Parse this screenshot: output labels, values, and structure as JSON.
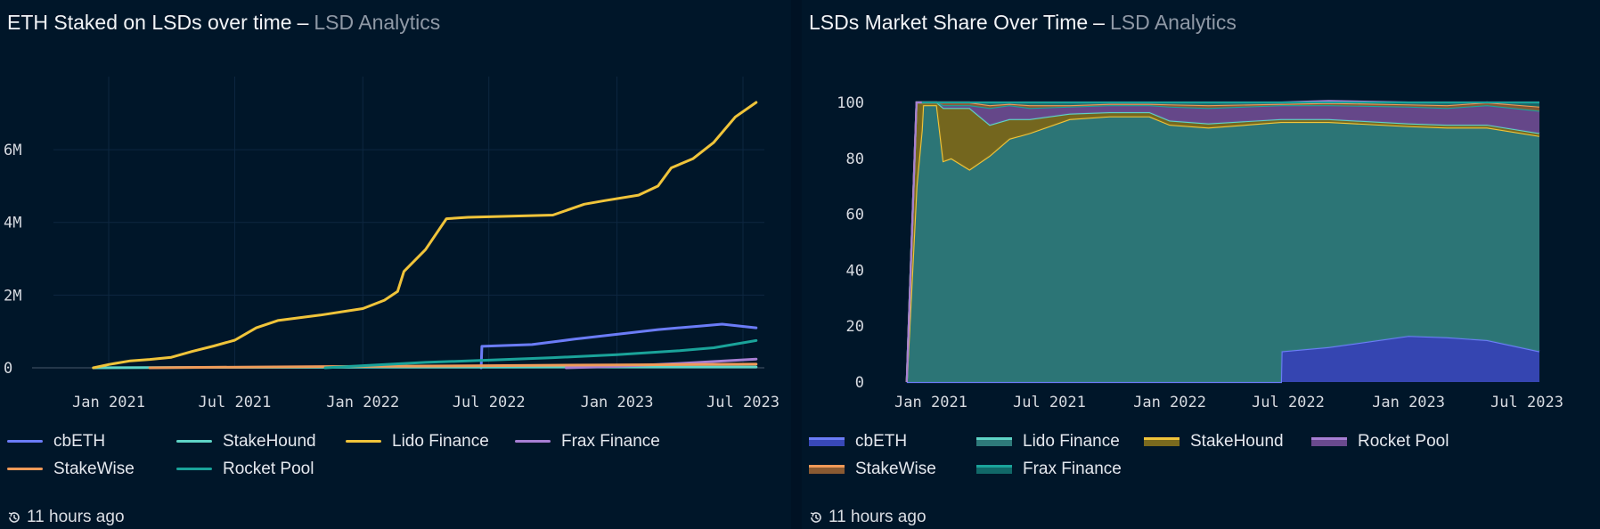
{
  "panels": [
    {
      "title": "ETH Staked on LSDs over time",
      "separator": "–",
      "subtitle": "LSD Analytics",
      "updated": "11 hours ago"
    },
    {
      "title": "LSDs Market Share Over Time",
      "separator": "–",
      "subtitle": "LSD Analytics",
      "updated": "11 hours ago"
    }
  ],
  "colors": {
    "cbETH": "#6b7cf7",
    "StakeHound": "#5ed4c6",
    "Lido Finance": "#f0c43a",
    "Frax Finance": "#a77fd4",
    "StakeWise": "#f09a58",
    "Rocket Pool": "#1aa39a",
    "area_cbETH": "#3848b8",
    "area_Lido": "#2e7a7a",
    "area_StakeHound": "#7a6a1e",
    "area_Rocket": "#6a4a8e",
    "area_StakeWise": "#8a5a32",
    "area_Frax": "#116868"
  },
  "chart_data": [
    {
      "type": "line",
      "title": "ETH Staked on LSDs over time",
      "x_ticks": [
        "Jan 2021",
        "Jul 2021",
        "Jan 2022",
        "Jul 2022",
        "Jan 2023",
        "Jul 2023"
      ],
      "y_ticks": [
        "0",
        "2M",
        "4M",
        "6M"
      ],
      "ylim": [
        0,
        7300000
      ],
      "legend": "bottom",
      "series": [
        {
          "name": "cbETH",
          "points": [
            [
              "2022-06-20",
              0
            ],
            [
              "2022-06-21",
              590000
            ],
            [
              "2022-09-01",
              640000
            ],
            [
              "2022-11-01",
              790000
            ],
            [
              "2023-01-01",
              920000
            ],
            [
              "2023-03-01",
              1050000
            ],
            [
              "2023-05-01",
              1150000
            ],
            [
              "2023-06-01",
              1200000
            ],
            [
              "2023-07-20",
              1100000
            ]
          ]
        },
        {
          "name": "StakeHound",
          "points": [
            [
              "2020-12-10",
              0
            ],
            [
              "2021-06-01",
              12000
            ],
            [
              "2022-01-01",
              18000
            ],
            [
              "2022-07-01",
              20000
            ],
            [
              "2023-07-20",
              22000
            ]
          ]
        },
        {
          "name": "Lido Finance",
          "points": [
            [
              "2020-12-10",
              0
            ],
            [
              "2021-01-01",
              90000
            ],
            [
              "2021-02-01",
              190000
            ],
            [
              "2021-03-01",
              230000
            ],
            [
              "2021-04-01",
              290000
            ],
            [
              "2021-05-01",
              450000
            ],
            [
              "2021-06-01",
              600000
            ],
            [
              "2021-07-01",
              760000
            ],
            [
              "2021-08-01",
              1100000
            ],
            [
              "2021-09-01",
              1300000
            ],
            [
              "2021-11-01",
              1450000
            ],
            [
              "2022-01-01",
              1630000
            ],
            [
              "2022-02-01",
              1860000
            ],
            [
              "2022-02-20",
              2100000
            ],
            [
              "2022-03-01",
              2650000
            ],
            [
              "2022-04-01",
              3250000
            ],
            [
              "2022-05-01",
              4100000
            ],
            [
              "2022-06-01",
              4140000
            ],
            [
              "2022-08-01",
              4170000
            ],
            [
              "2022-10-01",
              4200000
            ],
            [
              "2022-11-15",
              4500000
            ],
            [
              "2022-12-15",
              4600000
            ],
            [
              "2023-02-01",
              4750000
            ],
            [
              "2023-03-01",
              5000000
            ],
            [
              "2023-03-20",
              5500000
            ],
            [
              "2023-04-20",
              5750000
            ],
            [
              "2023-05-20",
              6200000
            ],
            [
              "2023-06-20",
              6900000
            ],
            [
              "2023-07-20",
              7300000
            ]
          ]
        },
        {
          "name": "Frax Finance",
          "points": [
            [
              "2022-10-20",
              0
            ],
            [
              "2023-01-01",
              40000
            ],
            [
              "2023-04-01",
              120000
            ],
            [
              "2023-07-20",
              240000
            ]
          ]
        },
        {
          "name": "StakeWise",
          "points": [
            [
              "2021-03-01",
              0
            ],
            [
              "2021-06-01",
              15000
            ],
            [
              "2022-01-01",
              40000
            ],
            [
              "2022-07-01",
              60000
            ],
            [
              "2023-01-01",
              80000
            ],
            [
              "2023-07-20",
              100000
            ]
          ]
        },
        {
          "name": "Rocket Pool",
          "points": [
            [
              "2021-11-08",
              0
            ],
            [
              "2022-01-01",
              60000
            ],
            [
              "2022-04-01",
              150000
            ],
            [
              "2022-07-01",
              210000
            ],
            [
              "2022-10-01",
              280000
            ],
            [
              "2023-01-01",
              360000
            ],
            [
              "2023-04-01",
              470000
            ],
            [
              "2023-05-20",
              550000
            ],
            [
              "2023-07-20",
              750000
            ]
          ]
        }
      ]
    },
    {
      "type": "area",
      "stacked": true,
      "title": "LSDs Market Share Over Time",
      "x_ticks": [
        "Jan 2021",
        "Jul 2021",
        "Jan 2022",
        "Jul 2022",
        "Jan 2023",
        "Jul 2023"
      ],
      "y_ticks": [
        "0",
        "20",
        "40",
        "60",
        "80",
        "100"
      ],
      "ylim": [
        0,
        100
      ],
      "legend": "bottom",
      "x": [
        "2020-11-25",
        "2020-12-10",
        "2020-12-18",
        "2020-12-20",
        "2021-01-10",
        "2021-01-20",
        "2021-02-01",
        "2021-03-01",
        "2021-04-01",
        "2021-05-01",
        "2021-06-01",
        "2021-08-01",
        "2021-10-01",
        "2021-12-01",
        "2022-01-01",
        "2022-03-01",
        "2022-06-20",
        "2022-06-21",
        "2022-09-01",
        "2023-01-01",
        "2023-03-01",
        "2023-05-01",
        "2023-07-20"
      ],
      "series": [
        {
          "name": "cbETH",
          "values": [
            0,
            0,
            0,
            0,
            0,
            0,
            0,
            0,
            0,
            0,
            0,
            0,
            0,
            0,
            0,
            0,
            0,
            11,
            12.5,
            16.5,
            16,
            15,
            11
          ]
        },
        {
          "name": "Lido Finance",
          "values": [
            0,
            70,
            90,
            99,
            99,
            79,
            80,
            76,
            81,
            87,
            89,
            94,
            95,
            95,
            92,
            91,
            93,
            82,
            80.5,
            75,
            75,
            76,
            77
          ]
        },
        {
          "name": "StakeHound",
          "values": [
            0,
            30,
            10,
            1,
            1,
            19,
            18,
            22,
            11,
            7,
            5,
            2,
            1.5,
            1.5,
            1.5,
            1.5,
            1,
            1,
            1,
            1,
            1,
            1,
            1
          ]
        },
        {
          "name": "Rocket Pool",
          "values": [
            0,
            0,
            0,
            0,
            0,
            1,
            1,
            1,
            6,
            5,
            4,
            2.5,
            2.5,
            2.5,
            5,
            5.5,
            5,
            5,
            5,
            6,
            6,
            7,
            8
          ]
        },
        {
          "name": "StakeWise",
          "values": [
            0,
            0,
            0,
            0,
            0,
            1,
            1,
            1,
            1,
            0.5,
            1,
            0.5,
            0.5,
            0.5,
            0.8,
            1,
            0.5,
            0.5,
            0.8,
            0.8,
            1,
            1,
            1.5
          ]
        },
        {
          "name": "Frax Finance",
          "values": [
            0,
            0,
            0,
            0,
            0,
            0,
            0,
            0,
            1,
            0.5,
            1,
            1,
            0.5,
            0.5,
            0.7,
            1,
            0.5,
            0.5,
            0.7,
            0.7,
            1,
            0,
            1.5
          ]
        }
      ]
    }
  ],
  "legends": [
    [
      {
        "label": "cbETH",
        "color": "#6b7cf7"
      },
      {
        "label": "StakeHound",
        "color": "#5ed4c6"
      },
      {
        "label": "Lido Finance",
        "color": "#f0c43a"
      },
      {
        "label": "Frax Finance",
        "color": "#a77fd4"
      },
      {
        "label": "StakeWise",
        "color": "#f09a58"
      },
      {
        "label": "Rocket Pool",
        "color": "#1aa39a"
      }
    ],
    [
      {
        "label": "cbETH",
        "color": "#6b7cf7",
        "fill": "#3848b8"
      },
      {
        "label": "Lido Finance",
        "color": "#5ed4c6",
        "fill": "#2e7a7a"
      },
      {
        "label": "StakeHound",
        "color": "#f0c43a",
        "fill": "#7a6a1e"
      },
      {
        "label": "Rocket Pool",
        "color": "#a77fd4",
        "fill": "#6a4a8e"
      },
      {
        "label": "StakeWise",
        "color": "#f09a58",
        "fill": "#8a5a32"
      },
      {
        "label": "Frax Finance",
        "color": "#1aa39a",
        "fill": "#116868"
      }
    ]
  ],
  "icons": {
    "updated": "history-clock-icon"
  }
}
